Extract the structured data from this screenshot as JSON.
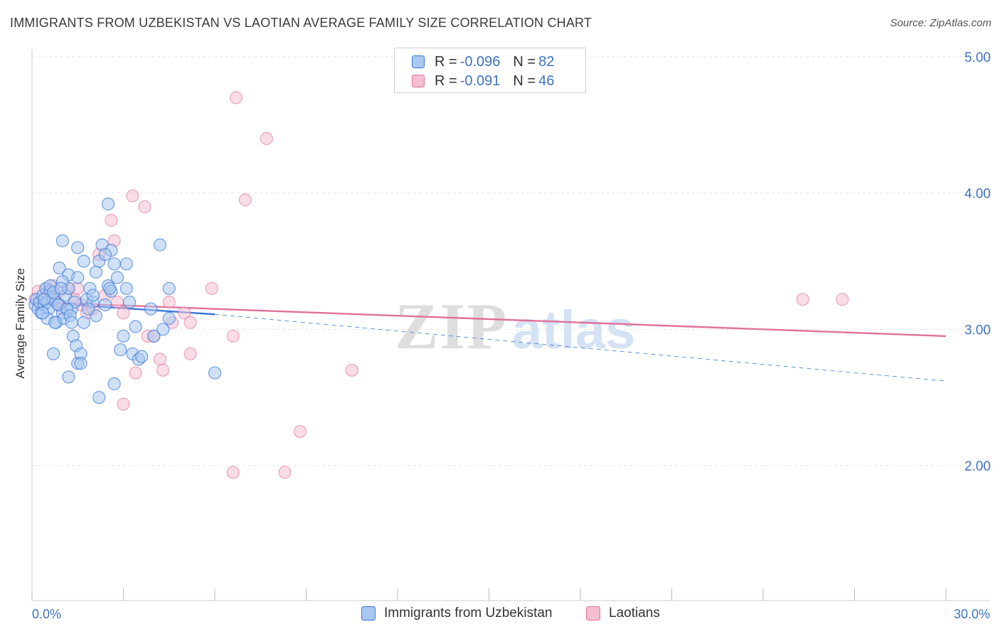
{
  "title": "IMMIGRANTS FROM UZBEKISTAN VS LAOTIAN AVERAGE FAMILY SIZE CORRELATION CHART",
  "source": "Source: ZipAtlas.com",
  "watermark": {
    "zip": "ZIP",
    "atlas": "atlas"
  },
  "colors": {
    "blue": "#3a78d8",
    "blue_fill": "#a9c8f0",
    "pink": "#e0709a",
    "pink_fill": "#f6bfd1",
    "tick_text": "#3f72c0"
  },
  "legend": {
    "rows": [
      {
        "r_label": "R = ",
        "r_value": "-0.096",
        "n_label": "N = ",
        "n_value": "82"
      },
      {
        "r_label": "R = ",
        "r_value": "-0.091",
        "n_label": "N = ",
        "n_value": "46"
      }
    ]
  },
  "bottom_legend": {
    "series1": "Immigrants from Uzbekistan",
    "series2": "Laotians"
  },
  "chart_data": {
    "type": "scatter",
    "title": "IMMIGRANTS FROM UZBEKISTAN VS LAOTIAN AVERAGE FAMILY SIZE CORRELATION CHART",
    "xlabel": "",
    "ylabel": "Average Family Size",
    "xlim": [
      0,
      30
    ],
    "ylim": [
      1.0,
      5.1
    ],
    "x_tick_labels": {
      "left": "0.0%",
      "right": "30.0%"
    },
    "y_ticks": [
      {
        "value": 2.0,
        "label": "2.00"
      },
      {
        "value": 3.0,
        "label": "3.00"
      },
      {
        "value": 4.0,
        "label": "4.00"
      },
      {
        "value": 5.0,
        "label": "5.00"
      }
    ],
    "series": [
      {
        "name": "Immigrants from Uzbekistan",
        "r": -0.096,
        "n": 82,
        "trend": {
          "x0": 0.0,
          "y0": 3.2,
          "x1": 6.0,
          "y1": 3.11,
          "dash_x1": 30.0,
          "dash_y1": 2.62
        },
        "points": [
          [
            0.1,
            3.18
          ],
          [
            0.15,
            3.22
          ],
          [
            0.2,
            3.15
          ],
          [
            0.25,
            3.2
          ],
          [
            0.3,
            3.12
          ],
          [
            0.35,
            3.25
          ],
          [
            0.4,
            3.18
          ],
          [
            0.45,
            3.3
          ],
          [
            0.5,
            3.2
          ],
          [
            0.55,
            3.15
          ],
          [
            0.6,
            3.28
          ],
          [
            0.5,
            3.08
          ],
          [
            0.7,
            3.22
          ],
          [
            0.8,
            3.05
          ],
          [
            0.9,
            3.18
          ],
          [
            1.0,
            3.12
          ],
          [
            1.1,
            3.25
          ],
          [
            1.2,
            3.3
          ],
          [
            1.3,
            3.15
          ],
          [
            1.4,
            3.2
          ],
          [
            0.9,
            3.45
          ],
          [
            1.2,
            3.4
          ],
          [
            1.5,
            3.6
          ],
          [
            1.0,
            3.65
          ],
          [
            0.6,
            3.32
          ],
          [
            0.7,
            3.27
          ],
          [
            0.75,
            3.05
          ],
          [
            0.85,
            3.18
          ],
          [
            1.0,
            3.35
          ],
          [
            1.05,
            3.08
          ],
          [
            1.15,
            3.15
          ],
          [
            1.25,
            3.1
          ],
          [
            1.35,
            2.95
          ],
          [
            1.45,
            2.88
          ],
          [
            1.5,
            2.75
          ],
          [
            1.6,
            2.82
          ],
          [
            1.7,
            3.05
          ],
          [
            1.8,
            3.22
          ],
          [
            1.9,
            3.3
          ],
          [
            2.0,
            3.2
          ],
          [
            2.1,
            3.42
          ],
          [
            2.2,
            3.5
          ],
          [
            2.3,
            3.62
          ],
          [
            2.4,
            3.18
          ],
          [
            2.5,
            3.32
          ],
          [
            2.6,
            3.58
          ],
          [
            2.7,
            3.48
          ],
          [
            2.8,
            3.38
          ],
          [
            2.9,
            2.85
          ],
          [
            3.0,
            2.95
          ],
          [
            3.1,
            3.3
          ],
          [
            3.2,
            3.2
          ],
          [
            3.3,
            2.82
          ],
          [
            3.4,
            3.02
          ],
          [
            3.5,
            2.78
          ],
          [
            3.6,
            2.8
          ],
          [
            2.2,
            2.5
          ],
          [
            2.7,
            2.6
          ],
          [
            1.2,
            2.65
          ],
          [
            0.7,
            2.82
          ],
          [
            1.6,
            2.75
          ],
          [
            2.0,
            3.25
          ],
          [
            2.4,
            3.55
          ],
          [
            2.6,
            3.28
          ],
          [
            2.5,
            3.92
          ],
          [
            4.2,
            3.62
          ],
          [
            4.5,
            3.3
          ],
          [
            4.0,
            2.95
          ],
          [
            4.3,
            3.0
          ],
          [
            4.5,
            3.08
          ],
          [
            6.0,
            2.68
          ],
          [
            3.1,
            3.48
          ],
          [
            2.1,
            3.1
          ],
          [
            1.7,
            3.5
          ],
          [
            1.5,
            3.38
          ],
          [
            0.95,
            3.3
          ],
          [
            1.85,
            3.15
          ],
          [
            2.55,
            3.3
          ],
          [
            1.3,
            3.05
          ],
          [
            0.4,
            3.22
          ],
          [
            0.35,
            3.12
          ],
          [
            3.9,
            3.15
          ]
        ]
      },
      {
        "name": "Laotians",
        "r": -0.091,
        "n": 46,
        "trend": {
          "x0": 0.0,
          "y0": 3.2,
          "x1": 30.0,
          "y1": 2.95
        },
        "points": [
          [
            0.1,
            3.22
          ],
          [
            0.2,
            3.28
          ],
          [
            0.3,
            3.18
          ],
          [
            0.5,
            3.3
          ],
          [
            0.6,
            3.25
          ],
          [
            0.7,
            3.32
          ],
          [
            0.8,
            3.2
          ],
          [
            0.9,
            3.28
          ],
          [
            1.0,
            3.15
          ],
          [
            1.2,
            3.3
          ],
          [
            1.4,
            3.22
          ],
          [
            1.5,
            3.3
          ],
          [
            1.6,
            3.18
          ],
          [
            1.8,
            3.12
          ],
          [
            2.0,
            3.15
          ],
          [
            2.2,
            3.55
          ],
          [
            2.4,
            3.25
          ],
          [
            2.6,
            3.8
          ],
          [
            2.7,
            3.65
          ],
          [
            2.8,
            3.2
          ],
          [
            3.0,
            3.12
          ],
          [
            3.3,
            3.98
          ],
          [
            3.4,
            2.68
          ],
          [
            3.7,
            3.9
          ],
          [
            3.8,
            2.95
          ],
          [
            4.0,
            2.95
          ],
          [
            4.2,
            2.78
          ],
          [
            4.3,
            2.7
          ],
          [
            4.5,
            3.2
          ],
          [
            4.6,
            3.05
          ],
          [
            5.0,
            3.12
          ],
          [
            5.2,
            3.05
          ],
          [
            5.2,
            2.82
          ],
          [
            5.9,
            3.3
          ],
          [
            6.6,
            2.95
          ],
          [
            6.6,
            1.95
          ],
          [
            6.7,
            4.7
          ],
          [
            7.0,
            3.95
          ],
          [
            7.7,
            4.4
          ],
          [
            8.3,
            1.95
          ],
          [
            8.8,
            2.25
          ],
          [
            10.5,
            2.7
          ],
          [
            25.3,
            3.22
          ],
          [
            26.6,
            3.22
          ],
          [
            3.0,
            2.45
          ],
          [
            0.4,
            3.22
          ]
        ]
      }
    ]
  }
}
